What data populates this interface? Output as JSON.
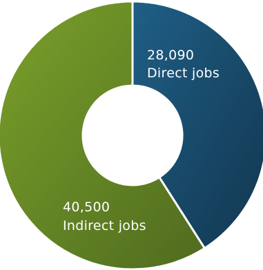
{
  "chart_data": {
    "type": "pie",
    "style": "donut",
    "slices": [
      {
        "value": 28090,
        "value_label": "28,090",
        "label": "Direct jobs",
        "color_start": "#1f5f86",
        "color_end": "#12364f"
      },
      {
        "value": 40500,
        "value_label": "40,500",
        "label": "Indirect jobs",
        "color_start": "#7aa02a",
        "color_end": "#4f6b1f"
      }
    ],
    "separator_color": "#ffffff",
    "background": "#ffffff"
  }
}
